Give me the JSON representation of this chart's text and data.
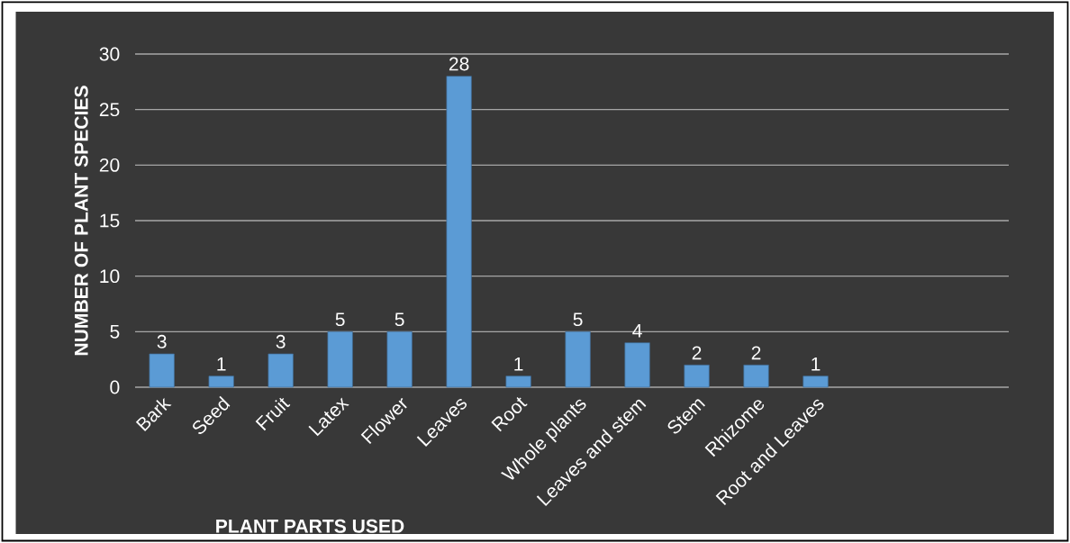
{
  "chart_data": {
    "type": "bar",
    "xlabel": "PLANT PARTS USED",
    "ylabel": "NUMBER OF PLANT SPECIES",
    "categories": [
      "Bark",
      "Seed",
      "Fruit",
      "Latex",
      "Flower",
      "Leaves",
      "Root",
      "Whole plants",
      "Leaves and stem",
      "Stem",
      "Rhizome",
      "Root and Leaves"
    ],
    "values": [
      3,
      1,
      3,
      5,
      5,
      28,
      1,
      5,
      4,
      2,
      2,
      1
    ],
    "color": "#5b9bd5",
    "ylim": [
      0,
      30
    ],
    "yticks": [
      0,
      5,
      10,
      15,
      20,
      25,
      30
    ],
    "grid": "y",
    "data_labels": true
  }
}
